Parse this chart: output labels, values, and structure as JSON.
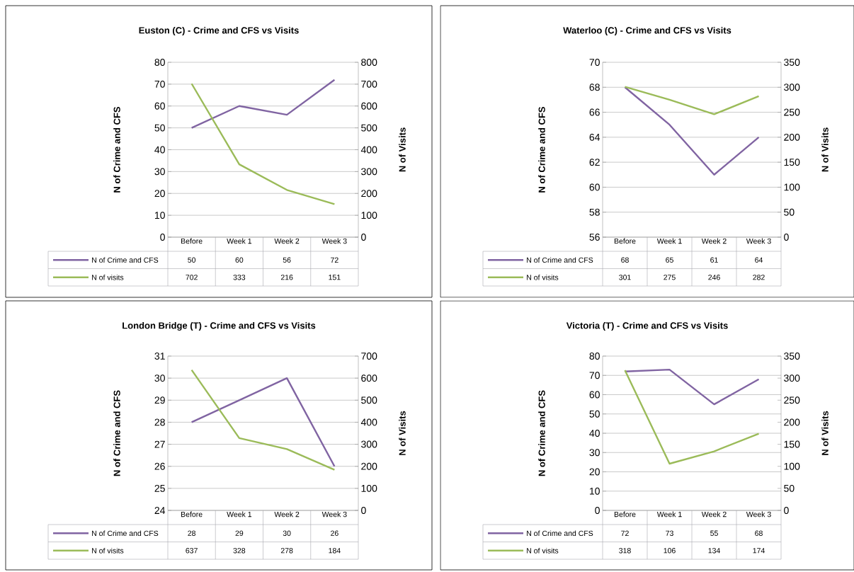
{
  "chart_data": [
    {
      "type": "line",
      "title": "Euston (C) - Crime and CFS vs Visits",
      "ylabel": "N of Crime and CFS",
      "y2label": "N of Visits",
      "categories": [
        "Before",
        "Week 1",
        "Week 2",
        "Week 3"
      ],
      "series": [
        {
          "name": "N of Crime and CFS",
          "color": "#8064a2",
          "values": [
            50,
            60,
            56,
            72
          ]
        },
        {
          "name": "N of visits",
          "color": "#9bbb59",
          "axis": "y2",
          "values": [
            702,
            333,
            216,
            151
          ]
        }
      ],
      "ylim": [
        0,
        80
      ],
      "yticks": [
        0,
        10,
        20,
        30,
        40,
        50,
        60,
        70,
        80
      ],
      "y2lim": [
        0,
        800
      ],
      "y2ticks": [
        0,
        100,
        200,
        300,
        400,
        500,
        600,
        700,
        800
      ],
      "grid": "y",
      "legend": "bottom",
      "data_labels": true
    },
    {
      "type": "line",
      "title": "Waterloo (C) - Crime and CFS vs Visits",
      "ylabel": "N of Crime and CFS",
      "y2label": "N of Visits",
      "categories": [
        "Before",
        "Week 1",
        "Week 2",
        "Week 3"
      ],
      "series": [
        {
          "name": "N of Crime and CFS",
          "color": "#8064a2",
          "values": [
            68,
            65,
            61,
            64
          ]
        },
        {
          "name": "N of visits",
          "color": "#9bbb59",
          "axis": "y2",
          "values": [
            301,
            275,
            246,
            282
          ]
        }
      ],
      "ylim": [
        56,
        70
      ],
      "yticks": [
        56,
        58,
        60,
        62,
        64,
        66,
        68,
        70
      ],
      "y2lim": [
        0,
        350
      ],
      "y2ticks": [
        0,
        50,
        100,
        150,
        200,
        250,
        300,
        350
      ],
      "grid": "y",
      "legend": "bottom",
      "data_labels": true
    },
    {
      "type": "line",
      "title": "London Bridge (T) - Crime and CFS vs Visits",
      "ylabel": "N of Crime and CFS",
      "y2label": "N of Visits",
      "categories": [
        "Before",
        "Week 1",
        "Week 2",
        "Week 3"
      ],
      "series": [
        {
          "name": "N of Crime and CFS",
          "color": "#8064a2",
          "values": [
            28,
            29,
            30,
            26
          ]
        },
        {
          "name": "N of visits",
          "color": "#9bbb59",
          "axis": "y2",
          "values": [
            637,
            328,
            278,
            184
          ]
        }
      ],
      "ylim": [
        24,
        31
      ],
      "yticks": [
        24,
        25,
        26,
        27,
        28,
        29,
        30,
        31
      ],
      "y2lim": [
        0,
        700
      ],
      "y2ticks": [
        0,
        100,
        200,
        300,
        400,
        500,
        600,
        700
      ],
      "grid": "y",
      "legend": "bottom",
      "data_labels": true
    },
    {
      "type": "line",
      "title": "Victoria (T) - Crime and CFS vs Visits",
      "ylabel": "N of Crime and CFS",
      "y2label": "N of Visits",
      "categories": [
        "Before",
        "Week 1",
        "Week 2",
        "Week 3"
      ],
      "series": [
        {
          "name": "N of Crime and CFS",
          "color": "#8064a2",
          "values": [
            72,
            73,
            55,
            68
          ]
        },
        {
          "name": "N of visits",
          "color": "#9bbb59",
          "axis": "y2",
          "values": [
            318,
            106,
            134,
            174
          ]
        }
      ],
      "ylim": [
        0,
        80
      ],
      "yticks": [
        0,
        10,
        20,
        30,
        40,
        50,
        60,
        70,
        80
      ],
      "y2lim": [
        0,
        350
      ],
      "y2ticks": [
        0,
        50,
        100,
        150,
        200,
        250,
        300,
        350
      ],
      "grid": "y",
      "legend": "bottom",
      "data_labels": true
    }
  ]
}
